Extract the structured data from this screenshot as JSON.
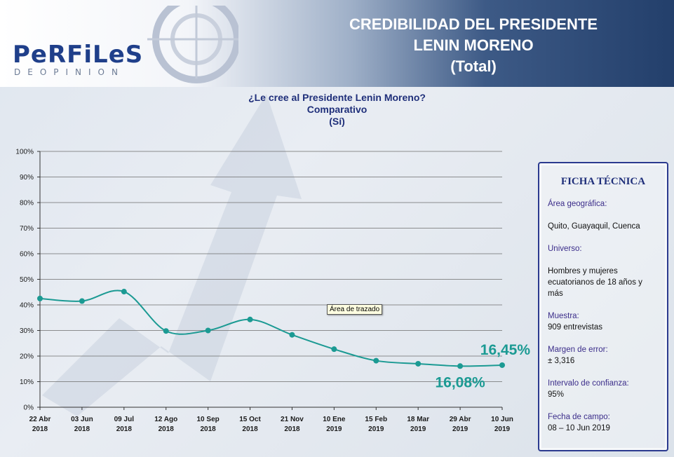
{
  "header": {
    "logo_text": "PeRFiLeS",
    "logo_sub": "DEOPINION",
    "title_lines": [
      "CREDIBILIDAD DEL PRESIDENTE",
      "LENIN MORENO",
      "(Total)"
    ]
  },
  "chart_heading": [
    "¿Le cree al Presidente Lenin Moreno?",
    "Comparativo",
    "(Sí)"
  ],
  "tooltip": "Área de trazado",
  "ficha": {
    "title": "FICHA TÉCNICA",
    "items": [
      {
        "label": "Área geográfica:",
        "value": "Quito, Guayaquil, Cuenca"
      },
      {
        "label": "Universo:",
        "value": "Hombres y mujeres ecuatorianos de 18 años y más"
      },
      {
        "label": "Muestra:",
        "value": "909 entrevistas"
      },
      {
        "label": "Margen de error:",
        "value": "± 3,316"
      },
      {
        "label": "Intervalo de confianza:",
        "value": "95%"
      },
      {
        "label": "Fecha de campo:",
        "value": "08 – 10 Jun 2019"
      }
    ]
  },
  "chart_data": {
    "type": "line",
    "title": "",
    "xlabel": "",
    "ylabel": "",
    "ylim": [
      0,
      100
    ],
    "yticks": [
      "0%",
      "10%",
      "20%",
      "30%",
      "40%",
      "50%",
      "60%",
      "70%",
      "80%",
      "90%",
      "100%"
    ],
    "grid": true,
    "categories": [
      [
        "22 Abr",
        "2018"
      ],
      [
        "03 Jun",
        "2018"
      ],
      [
        "09 Jul",
        "2018"
      ],
      [
        "12 Ago",
        "2018"
      ],
      [
        "10 Sep",
        "2018"
      ],
      [
        "15 Oct",
        "2018"
      ],
      [
        "21 Nov",
        "2018"
      ],
      [
        "10 Ene",
        "2019"
      ],
      [
        "15 Feb",
        "2019"
      ],
      [
        "18 Mar",
        "2019"
      ],
      [
        "29 Abr",
        "2019"
      ],
      [
        "10 Jun",
        "2019"
      ]
    ],
    "series": [
      {
        "values": [
          42.5,
          41.5,
          45.2,
          29.8,
          30.0,
          34.3,
          28.3,
          22.7,
          18.2,
          17.0,
          16.08,
          16.45
        ],
        "color": "#1b9a93"
      }
    ],
    "annotations": [
      {
        "index": 11,
        "text": "16,45%"
      },
      {
        "index": 10,
        "text": "16,08%"
      }
    ]
  }
}
